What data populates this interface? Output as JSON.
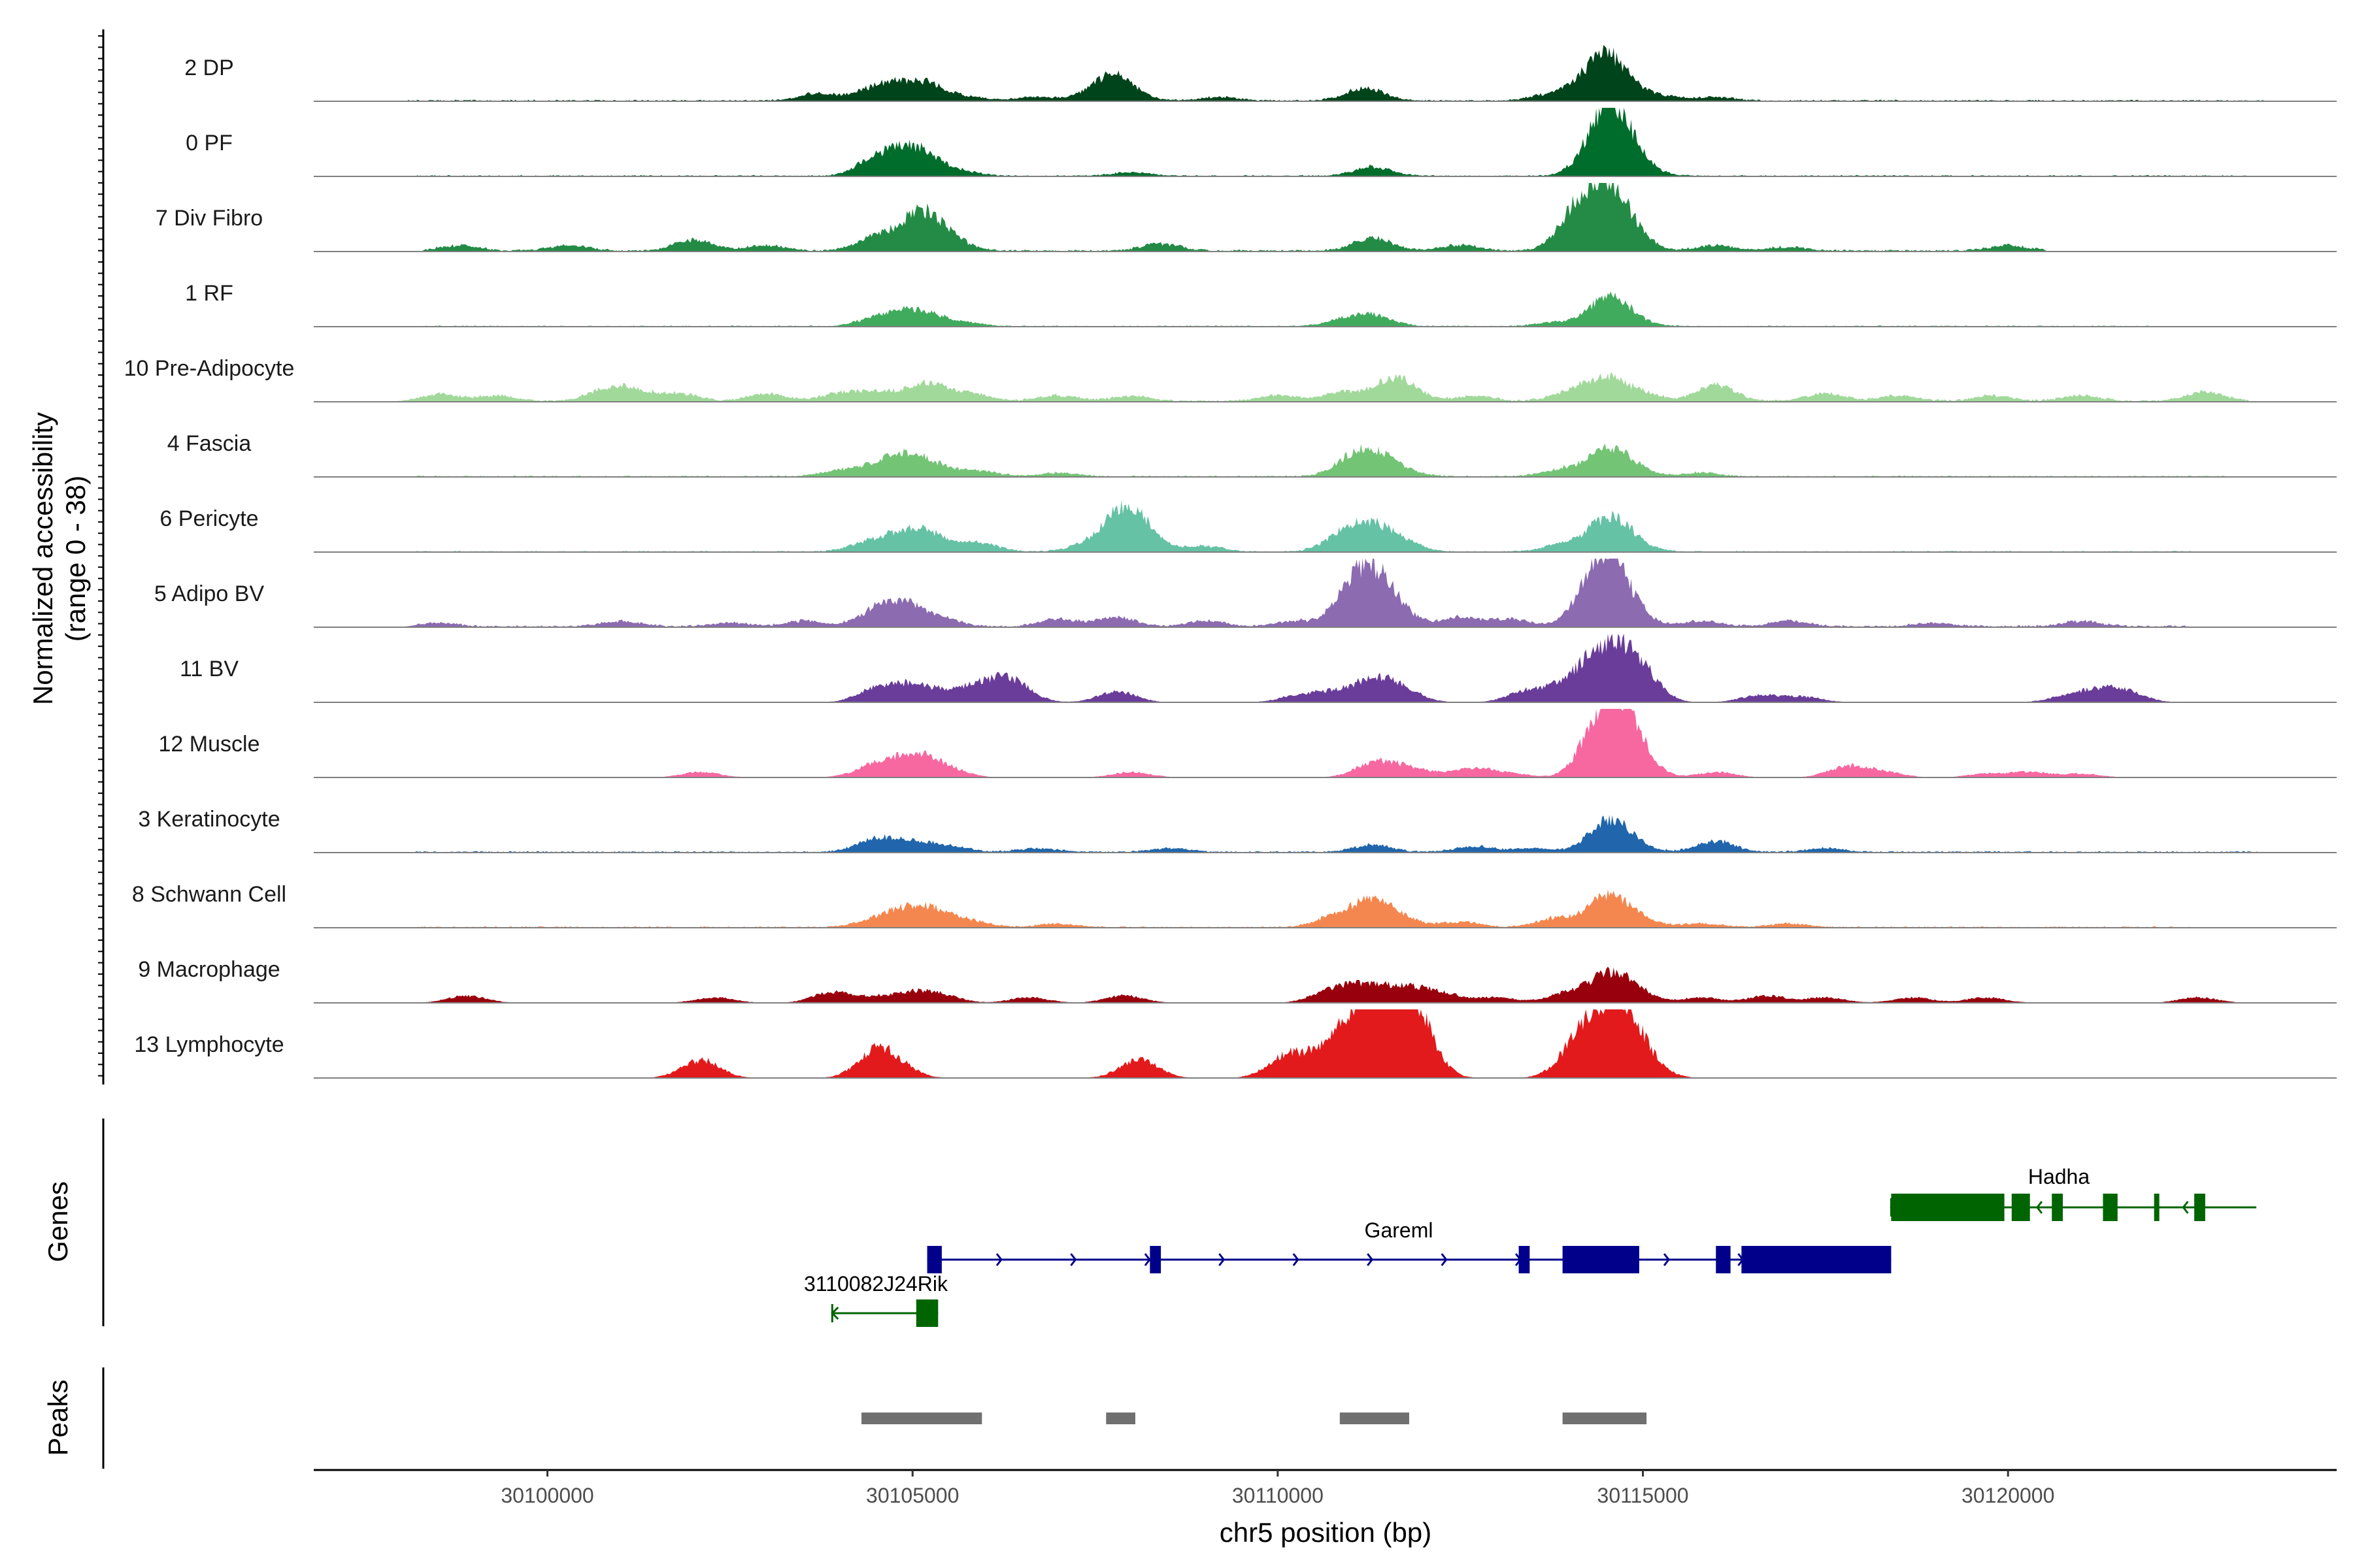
{
  "chart_data": {
    "type": "area",
    "xlabel": "chr5 position (bp)",
    "ylabel_line1": "Normalized accessibility",
    "ylabel_line2": "(range 0 - 38)",
    "genes_label": "Genes",
    "peaks_label": "Peaks",
    "xlim": [
      30096800,
      30124500
    ],
    "x_ticks": [
      30100000,
      30105000,
      30110000,
      30115000,
      30120000
    ],
    "x_tick_labels": [
      "30100000",
      "30105000",
      "30110000",
      "30115000",
      "30120000"
    ],
    "ylim": [
      0,
      38
    ],
    "tracks": [
      {
        "name": "2 DP",
        "color": "#00441b",
        "peaks": [
          [
            30103700,
            4
          ],
          [
            30104500,
            7
          ],
          [
            30104900,
            6
          ],
          [
            30105200,
            7
          ],
          [
            30105700,
            2
          ],
          [
            30106700,
            2
          ],
          [
            30107500,
            4
          ],
          [
            30107800,
            12
          ],
          [
            30109200,
            2
          ],
          [
            30111200,
            7
          ],
          [
            30113700,
            3
          ],
          [
            30114200,
            6
          ],
          [
            30114500,
            20
          ],
          [
            30114800,
            5
          ],
          [
            30115300,
            2
          ],
          [
            30116000,
            2
          ]
        ],
        "noise": [
          [
            30098000,
            30123500,
            0.8
          ]
        ]
      },
      {
        "name": "0 PF",
        "color": "#006d2c",
        "peaks": [
          [
            30104500,
            9
          ],
          [
            30104900,
            10
          ],
          [
            30105200,
            8
          ],
          [
            30105700,
            2
          ],
          [
            30108000,
            2
          ],
          [
            30111300,
            5
          ],
          [
            30114400,
            15
          ],
          [
            30114600,
            25
          ],
          [
            30114900,
            6
          ]
        ],
        "noise": [
          [
            30098200,
            30123500,
            0.7
          ]
        ]
      },
      {
        "name": "7 Div Fibro",
        "color": "#238b45",
        "peaks": [
          [
            30098800,
            3
          ],
          [
            30100300,
            3
          ],
          [
            30102000,
            6
          ],
          [
            30103000,
            3
          ],
          [
            30104500,
            8
          ],
          [
            30105100,
            20
          ],
          [
            30105500,
            6
          ],
          [
            30108400,
            4
          ],
          [
            30111300,
            7
          ],
          [
            30112500,
            3
          ],
          [
            30114100,
            20
          ],
          [
            30114500,
            28
          ],
          [
            30114800,
            10
          ],
          [
            30116000,
            3
          ],
          [
            30117000,
            2
          ],
          [
            30120000,
            3
          ]
        ],
        "noise": [
          [
            30098300,
            30120500,
            1.0
          ]
        ]
      },
      {
        "name": "1 RF",
        "color": "#41ab5d",
        "peaks": [
          [
            30104500,
            4
          ],
          [
            30104900,
            6
          ],
          [
            30105200,
            5
          ],
          [
            30105700,
            2
          ],
          [
            30110900,
            3
          ],
          [
            30111300,
            6
          ],
          [
            30113800,
            2
          ],
          [
            30114500,
            14
          ],
          [
            30114800,
            4
          ]
        ],
        "noise": [
          [
            30098200,
            30122000,
            0.6
          ]
        ]
      },
      {
        "name": "10 Pre-Adipocyte",
        "color": "#a1d99b",
        "peaks": [
          [
            30098500,
            4
          ],
          [
            30099300,
            3
          ],
          [
            30100800,
            6
          ],
          [
            30101200,
            5
          ],
          [
            30101800,
            4
          ],
          [
            30103000,
            4
          ],
          [
            30104000,
            4
          ],
          [
            30104500,
            5
          ],
          [
            30105200,
            10
          ],
          [
            30105800,
            4
          ],
          [
            30107000,
            3
          ],
          [
            30108000,
            3
          ],
          [
            30110000,
            3
          ],
          [
            30110900,
            5
          ],
          [
            30111500,
            5
          ],
          [
            30111700,
            9
          ],
          [
            30112700,
            3
          ],
          [
            30114000,
            5
          ],
          [
            30114500,
            12
          ],
          [
            30115000,
            4
          ],
          [
            30116000,
            9
          ],
          [
            30117500,
            4
          ],
          [
            30118500,
            3
          ],
          [
            30119800,
            3
          ],
          [
            30121000,
            3
          ],
          [
            30122700,
            5
          ]
        ],
        "noise": [
          [
            30098500,
            30123300,
            1.0
          ]
        ]
      },
      {
        "name": "4 Fascia",
        "color": "#74c476",
        "peaks": [
          [
            30104000,
            3
          ],
          [
            30104500,
            5
          ],
          [
            30104900,
            10
          ],
          [
            30105300,
            5
          ],
          [
            30105900,
            3
          ],
          [
            30107000,
            2
          ],
          [
            30111000,
            7
          ],
          [
            30111300,
            11
          ],
          [
            30111700,
            3
          ],
          [
            30113900,
            4
          ],
          [
            30114500,
            13
          ],
          [
            30114800,
            5
          ],
          [
            30115800,
            2
          ]
        ],
        "noise": [
          [
            30098200,
            30123000,
            0.7
          ]
        ]
      },
      {
        "name": "6 Pericyte",
        "color": "#66c2a4",
        "peaks": [
          [
            30104400,
            5
          ],
          [
            30104900,
            10
          ],
          [
            30105300,
            7
          ],
          [
            30105900,
            5
          ],
          [
            30107400,
            4
          ],
          [
            30107900,
            22
          ],
          [
            30108200,
            6
          ],
          [
            30109000,
            3
          ],
          [
            30110900,
            9
          ],
          [
            30111300,
            12
          ],
          [
            30111700,
            5
          ],
          [
            30113900,
            4
          ],
          [
            30114500,
            16
          ],
          [
            30114800,
            6
          ]
        ],
        "noise": [
          [
            30098200,
            30122500,
            0.6
          ]
        ]
      },
      {
        "name": "5 Adipo BV",
        "color": "#8c6bb1",
        "peaks": [
          [
            30098500,
            2
          ],
          [
            30101000,
            3
          ],
          [
            30102500,
            2
          ],
          [
            30103500,
            3
          ],
          [
            30104500,
            8
          ],
          [
            30104900,
            11
          ],
          [
            30105400,
            4
          ],
          [
            30107000,
            4
          ],
          [
            30107800,
            5
          ],
          [
            30109000,
            3
          ],
          [
            30110200,
            3
          ],
          [
            30111000,
            15
          ],
          [
            30111300,
            22
          ],
          [
            30111600,
            8
          ],
          [
            30112500,
            5
          ],
          [
            30113200,
            4
          ],
          [
            30114300,
            12
          ],
          [
            30114500,
            30
          ],
          [
            30114800,
            8
          ],
          [
            30115800,
            3
          ],
          [
            30117000,
            3
          ],
          [
            30119000,
            2
          ],
          [
            30121000,
            3
          ]
        ],
        "noise": [
          [
            30098200,
            30122500,
            1.0
          ]
        ]
      },
      {
        "name": "11 BV",
        "color": "#6a3d9a",
        "peaks": [
          [
            30104500,
            7
          ],
          [
            30104900,
            6
          ],
          [
            30105200,
            5
          ],
          [
            30105700,
            6
          ],
          [
            30106100,
            7
          ],
          [
            30106400,
            9
          ],
          [
            30107800,
            6
          ],
          [
            30110300,
            4
          ],
          [
            30110800,
            5
          ],
          [
            30111300,
            11
          ],
          [
            30111700,
            7
          ],
          [
            30113400,
            6
          ],
          [
            30113900,
            7
          ],
          [
            30114300,
            12
          ],
          [
            30114500,
            16
          ],
          [
            30114800,
            14
          ],
          [
            30115000,
            10
          ],
          [
            30116600,
            4
          ],
          [
            30117200,
            3
          ],
          [
            30120800,
            3
          ],
          [
            30121200,
            5
          ],
          [
            30121600,
            6
          ]
        ],
        "noise": []
      },
      {
        "name": "12 Muscle",
        "color": "#f768a1",
        "peaks": [
          [
            30102100,
            3
          ],
          [
            30104400,
            4
          ],
          [
            30104700,
            6
          ],
          [
            30105100,
            10
          ],
          [
            30105500,
            4
          ],
          [
            30108000,
            3
          ],
          [
            30111300,
            7
          ],
          [
            30111600,
            4
          ],
          [
            30112000,
            3
          ],
          [
            30112700,
            5
          ],
          [
            30113200,
            2
          ],
          [
            30114400,
            25
          ],
          [
            30114700,
            28
          ],
          [
            30114900,
            8
          ],
          [
            30116000,
            3
          ],
          [
            30117800,
            6
          ],
          [
            30118300,
            3
          ],
          [
            30119700,
            2
          ],
          [
            30120300,
            3
          ],
          [
            30121000,
            2
          ]
        ],
        "noise": []
      },
      {
        "name": "3 Keratinocyte",
        "color": "#2166ac",
        "peaks": [
          [
            30104500,
            7
          ],
          [
            30105000,
            5
          ],
          [
            30105500,
            3
          ],
          [
            30106700,
            2
          ],
          [
            30108500,
            2
          ],
          [
            30111300,
            4
          ],
          [
            30112700,
            3
          ],
          [
            30113500,
            2
          ],
          [
            30114500,
            15
          ],
          [
            30114800,
            5
          ],
          [
            30116000,
            6
          ],
          [
            30117500,
            2
          ]
        ],
        "noise": [
          [
            30098200,
            30123500,
            0.8
          ]
        ]
      },
      {
        "name": "8 Schwann Cell",
        "color": "#f4874f",
        "peaks": [
          [
            30104500,
            4
          ],
          [
            30104900,
            8
          ],
          [
            30105300,
            8
          ],
          [
            30105800,
            3
          ],
          [
            30107000,
            2
          ],
          [
            30110800,
            6
          ],
          [
            30111300,
            14
          ],
          [
            30111700,
            4
          ],
          [
            30112500,
            3
          ],
          [
            30113800,
            5
          ],
          [
            30114500,
            16
          ],
          [
            30114900,
            5
          ],
          [
            30115800,
            2
          ],
          [
            30117000,
            2
          ]
        ],
        "noise": [
          [
            30098200,
            30122500,
            0.7
          ]
        ]
      },
      {
        "name": "9 Macrophage",
        "color": "#99000d",
        "peaks": [
          [
            30098900,
            4
          ],
          [
            30102300,
            3
          ],
          [
            30103900,
            6
          ],
          [
            30104500,
            3
          ],
          [
            30105000,
            5
          ],
          [
            30105400,
            4
          ],
          [
            30106600,
            3
          ],
          [
            30107900,
            4
          ],
          [
            30110700,
            6
          ],
          [
            30111100,
            7
          ],
          [
            30111500,
            6
          ],
          [
            30111900,
            6
          ],
          [
            30112300,
            4
          ],
          [
            30113000,
            3
          ],
          [
            30113900,
            4
          ],
          [
            30114300,
            5
          ],
          [
            30114600,
            12
          ],
          [
            30114900,
            5
          ],
          [
            30115800,
            3
          ],
          [
            30116700,
            4
          ],
          [
            30117500,
            3
          ],
          [
            30118700,
            3
          ],
          [
            30119700,
            3
          ],
          [
            30122600,
            3
          ]
        ],
        "noise": []
      },
      {
        "name": "13 Lymphocyte",
        "color": "#e31a1c",
        "peaks": [
          [
            30102100,
            10
          ],
          [
            30104500,
            14
          ],
          [
            30104800,
            5
          ],
          [
            30108100,
            10
          ],
          [
            30110100,
            10
          ],
          [
            30110400,
            6
          ],
          [
            30110900,
            24
          ],
          [
            30111300,
            30
          ],
          [
            30111600,
            22
          ],
          [
            30111900,
            30
          ],
          [
            30114100,
            17
          ],
          [
            30114500,
            28
          ],
          [
            30114800,
            22
          ],
          [
            30115100,
            4
          ]
        ],
        "noise": []
      }
    ],
    "genes": [
      {
        "name": "Gareml",
        "strand": "+",
        "color": "#00008b",
        "row": 1,
        "start": 30105200,
        "end": 30118400,
        "exons": [
          [
            30105200,
            30105400
          ],
          [
            30108250,
            30108400
          ],
          [
            30113300,
            30113450
          ],
          [
            30113900,
            30114950
          ],
          [
            30116000,
            30116200
          ],
          [
            30116350,
            30118400
          ]
        ]
      },
      {
        "name": "3110082J24Rik",
        "strand": "-",
        "color": "#006400",
        "row": 2,
        "start": 30103900,
        "end": 30105350,
        "exons": [
          [
            30105050,
            30105350
          ]
        ]
      },
      {
        "name": "Hadha",
        "strand": "-",
        "color": "#006400",
        "row": 0,
        "start": 30118400,
        "end": 30123400,
        "exons": [
          [
            30118400,
            30119950
          ],
          [
            30120050,
            30120300
          ],
          [
            30120600,
            30120750
          ],
          [
            30121300,
            30121500
          ],
          [
            30122000,
            30122050
          ],
          [
            30122550,
            30122700
          ]
        ]
      }
    ],
    "peak_regions": [
      [
        30104300,
        30105950
      ],
      [
        30107650,
        30108050
      ],
      [
        30110850,
        30111800
      ],
      [
        30113900,
        30115050
      ]
    ],
    "peak_color": "#707070"
  }
}
